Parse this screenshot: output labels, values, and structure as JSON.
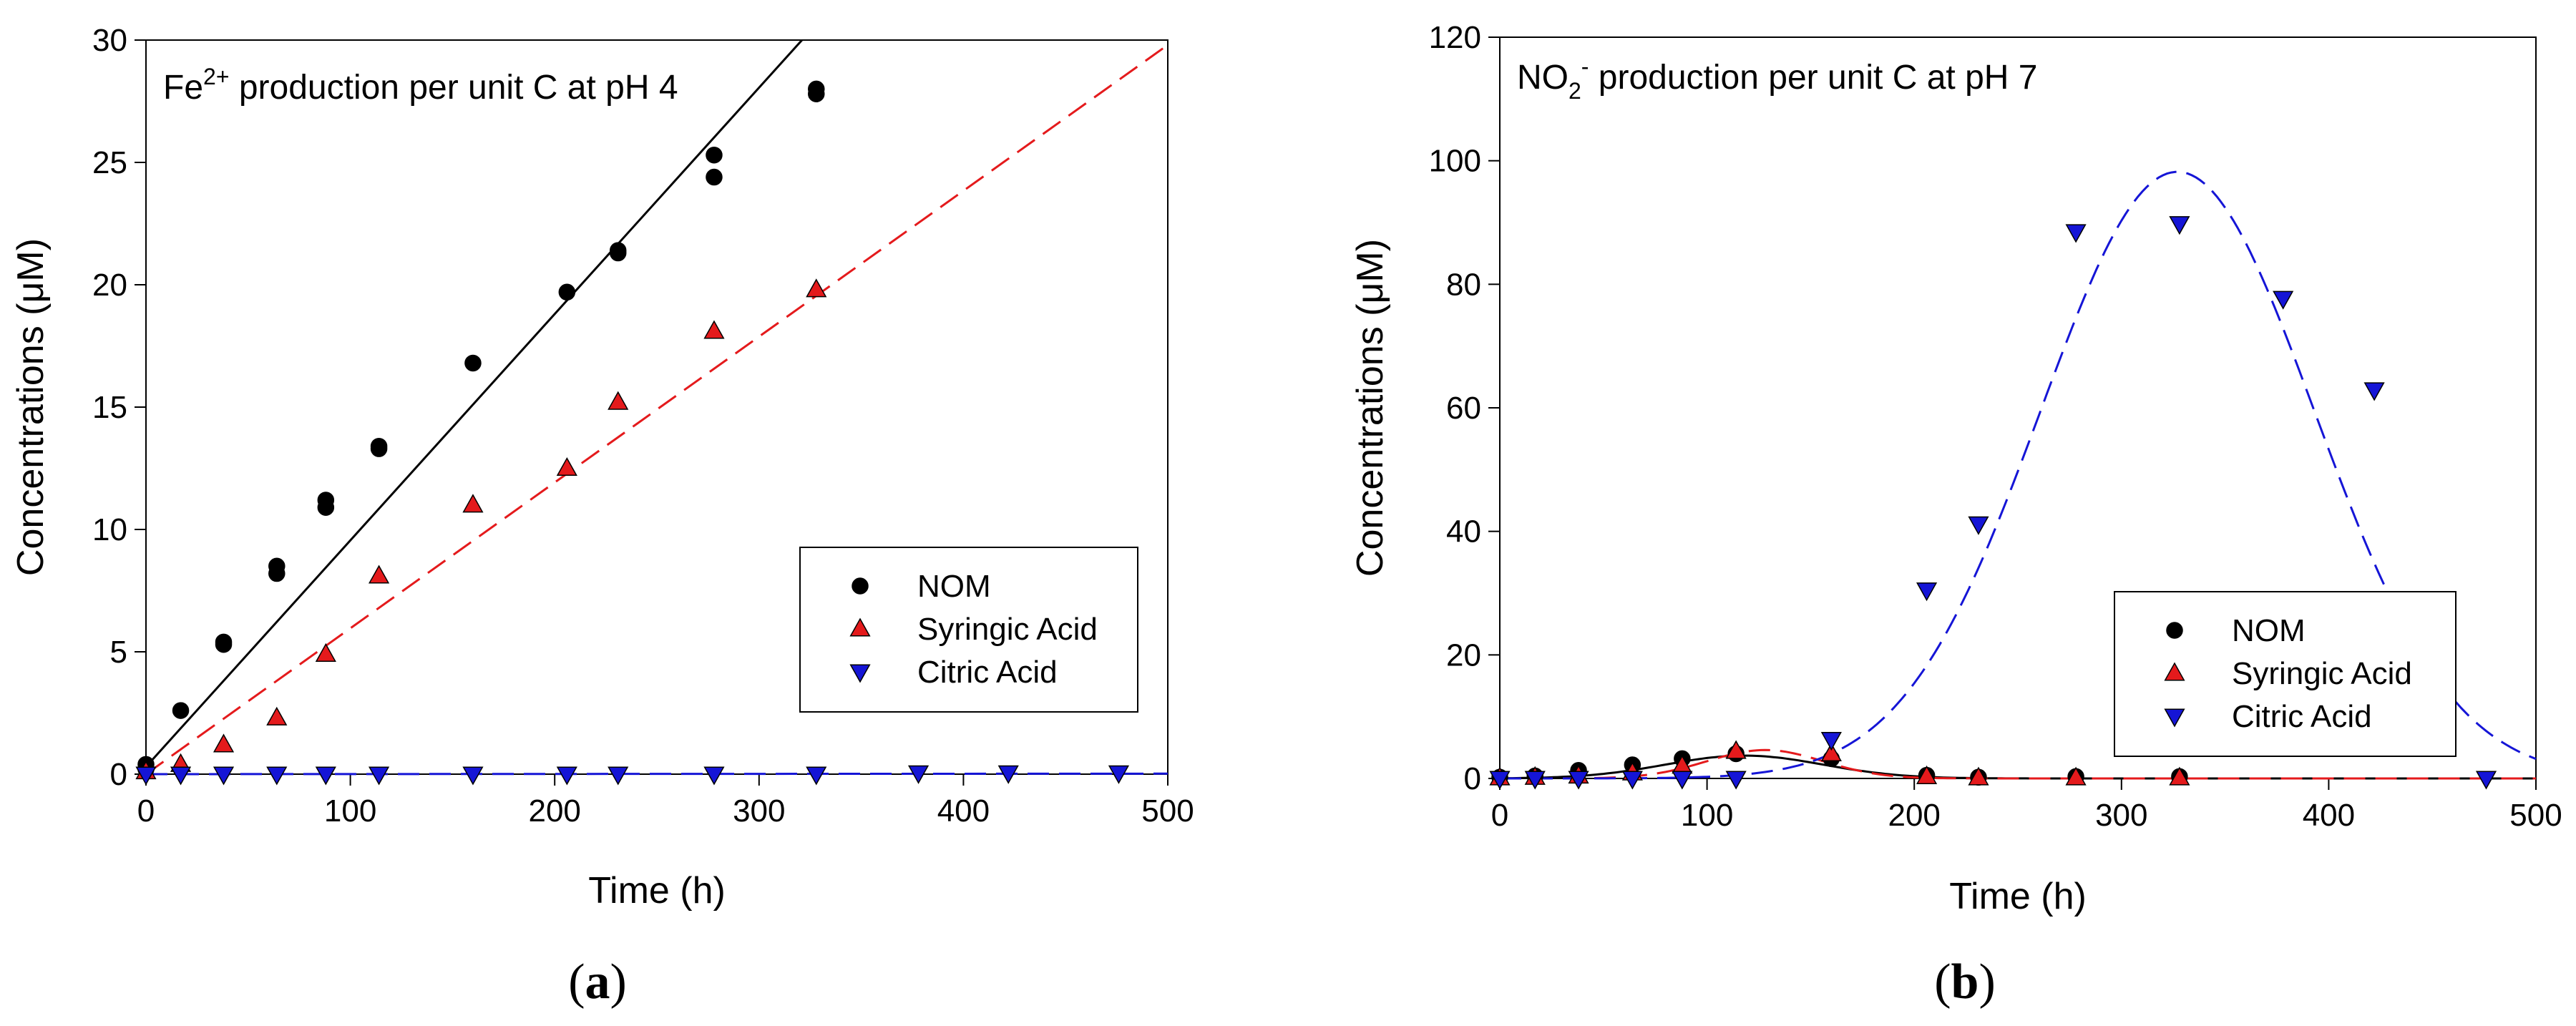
{
  "colors": {
    "nom": "#000000",
    "syringic": "#e41a1c",
    "citric": "#1515d6",
    "axis": "#000000"
  },
  "chart_data": [
    {
      "type": "scatter",
      "panel": "a",
      "caption": "(a)",
      "title_parts": [
        "Fe",
        "2+",
        " production per unit C at pH 4"
      ],
      "xlabel": "Time (h)",
      "ylabel": "Concentrations (μM)",
      "xlim": [
        0,
        500
      ],
      "ylim": [
        0,
        30
      ],
      "xticks": [
        0,
        100,
        200,
        300,
        400,
        500
      ],
      "yticks": [
        0,
        5,
        10,
        15,
        20,
        25,
        30
      ],
      "legend": {
        "position": "center-right",
        "entries": [
          "NOM",
          "Syringic Acid",
          "Citric Acid"
        ]
      },
      "series": [
        {
          "name": "NOM",
          "color_key": "nom",
          "marker": "circle",
          "x": [
            0,
            0,
            17,
            38,
            38,
            64,
            64,
            88,
            88,
            114,
            114,
            160,
            206,
            231,
            231,
            278,
            278,
            328,
            328
          ],
          "y": [
            0.4,
            0.2,
            2.6,
            5.3,
            5.4,
            8.5,
            8.2,
            11.2,
            10.9,
            13.4,
            13.3,
            16.8,
            19.7,
            21.4,
            21.3,
            25.3,
            24.4,
            28.0,
            27.8
          ]
        },
        {
          "name": "Syringic Acid",
          "color_key": "syringic",
          "marker": "triangle-up",
          "x": [
            0,
            17,
            38,
            64,
            88,
            114,
            160,
            206,
            231,
            278,
            328
          ],
          "y": [
            0.1,
            0.4,
            1.2,
            2.3,
            4.9,
            8.1,
            11.0,
            12.5,
            15.2,
            18.1,
            19.8
          ]
        },
        {
          "name": "Citric Acid",
          "color_key": "citric",
          "marker": "triangle-down",
          "x": [
            0,
            17,
            38,
            64,
            88,
            114,
            160,
            206,
            231,
            278,
            328,
            378,
            422,
            476
          ],
          "y": [
            0,
            0,
            0,
            0,
            0,
            0,
            0,
            0,
            0,
            0,
            0,
            0.05,
            0.05,
            0.05
          ]
        }
      ],
      "fits": [
        {
          "name": "NOM fit",
          "color_key": "nom",
          "style": "solid",
          "kind": "linear",
          "x": [
            0,
            321
          ],
          "y": [
            0.3,
            30
          ]
        },
        {
          "name": "Syringic Acid fit",
          "color_key": "syringic",
          "style": "dashed",
          "kind": "linear",
          "x": [
            0,
            500
          ],
          "y": [
            0,
            29.8
          ]
        },
        {
          "name": "Citric Acid fit",
          "color_key": "citric",
          "style": "dashed",
          "kind": "linear",
          "x": [
            0,
            500
          ],
          "y": [
            0,
            0.02
          ]
        }
      ]
    },
    {
      "type": "scatter",
      "panel": "b",
      "caption": "(b)",
      "title_parts": [
        "NO",
        "2",
        "-",
        " production per unit C at pH 7"
      ],
      "xlabel": "Time (h)",
      "ylabel": "Concentrations (μM)",
      "xlim": [
        0,
        500
      ],
      "ylim": [
        0,
        120
      ],
      "xticks": [
        0,
        100,
        200,
        300,
        400,
        500
      ],
      "yticks": [
        0,
        20,
        40,
        60,
        80,
        100,
        120
      ],
      "legend": {
        "position": "bottom-right",
        "entries": [
          "NOM",
          "Syringic Acid",
          "Citric Acid"
        ]
      },
      "series": [
        {
          "name": "NOM",
          "color_key": "nom",
          "marker": "circle",
          "x": [
            0,
            17,
            38,
            64,
            88,
            114,
            160,
            206,
            231,
            278,
            328
          ],
          "y": [
            0.2,
            0.4,
            1.3,
            2.2,
            3.2,
            4.0,
            3.2,
            0.5,
            0.2,
            0.3,
            0.3
          ]
        },
        {
          "name": "Syringic Acid",
          "color_key": "syringic",
          "marker": "triangle-up",
          "x": [
            0,
            17,
            38,
            64,
            88,
            114,
            160,
            206,
            231,
            278,
            328
          ],
          "y": [
            0.1,
            0.2,
            0.4,
            0.9,
            2.0,
            4.4,
            4.0,
            0.3,
            0.1,
            0.1,
            0.1
          ]
        },
        {
          "name": "Citric Acid",
          "color_key": "citric",
          "marker": "triangle-down",
          "x": [
            0,
            17,
            38,
            64,
            88,
            114,
            160,
            206,
            231,
            278,
            328,
            378,
            422,
            476
          ],
          "y": [
            0,
            0,
            0,
            0,
            0,
            0,
            6.3,
            30.5,
            41.2,
            88.5,
            89.8,
            77.7,
            62.9,
            0
          ]
        }
      ],
      "fits": [
        {
          "name": "NOM fit",
          "color_key": "nom",
          "style": "solid",
          "kind": "gaussian",
          "amp": 3.7,
          "mu": 118,
          "sigma": 38
        },
        {
          "name": "Syringic Acid fit",
          "color_key": "syringic",
          "style": "dashed",
          "kind": "gaussian",
          "amp": 4.6,
          "mu": 128,
          "sigma": 28
        },
        {
          "name": "Citric Acid fit",
          "color_key": "citric",
          "style": "dashed",
          "kind": "gaussian",
          "amp": 98.2,
          "mu": 327,
          "sigma": 66
        }
      ]
    }
  ]
}
